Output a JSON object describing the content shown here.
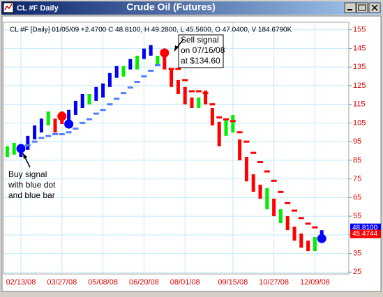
{
  "window": {
    "title": "CL #F Daily"
  },
  "chart_data": {
    "type": "range_bar",
    "title": "Crude Oil (Futures)",
    "subtitle": "CL #F [Daily] 01/05/09 +2.4700 C 48.8100, H 49.2800, L 45.5600, O 47.0400, V 184.6790K",
    "categories": [
      null,
      null,
      "02/13/08",
      null,
      null,
      null,
      null,
      null,
      "03/27/08",
      null,
      null,
      null,
      null,
      null,
      "05/08/08",
      null,
      null,
      null,
      null,
      null,
      "06/20/08",
      null,
      null,
      null,
      null,
      null,
      "08/01/08",
      null,
      null,
      null,
      null,
      null,
      null,
      "09/15/08",
      null,
      null,
      null,
      null,
      null,
      "10/27/08",
      null,
      null,
      null,
      null,
      null,
      "12/09/08",
      null
    ],
    "ylim": [
      24,
      159
    ],
    "yticks": [
      25,
      35,
      45,
      55,
      65,
      75,
      85,
      95,
      105,
      115,
      125,
      135,
      145,
      155
    ],
    "grid": true,
    "series": [
      {
        "type": "range",
        "high": [
          92.5,
          94.3,
          93.6,
          98.1,
          103.7,
          107.4,
          111.2,
          107.4,
          111.2,
          112,
          116.8,
          120.5,
          120.5,
          124.3,
          126.2,
          131.8,
          135.5,
          135.5,
          139.3,
          141.1,
          144.9,
          146.8,
          141.1,
          141.1,
          133.7,
          128,
          124.3,
          118.7,
          118.7,
          122.4,
          113,
          105.6,
          107.4,
          109.3,
          96.2,
          86.8,
          77.5,
          71.9,
          70,
          64.4,
          58.7,
          55,
          49.4,
          45.7,
          41.9,
          43.8,
          47.5
        ],
        "low": [
          86.8,
          88,
          86.8,
          90.6,
          96.2,
          99.9,
          103.7,
          99.9,
          104.4,
          103,
          109.3,
          113,
          115,
          116.8,
          118.7,
          124.3,
          129.2,
          129.9,
          133.7,
          133.7,
          139.3,
          141.1,
          135.5,
          133.7,
          124.3,
          120.5,
          115,
          113,
          113,
          115,
          103.7,
          92.5,
          98.1,
          99.9,
          85,
          73.7,
          68.1,
          64.4,
          58.7,
          55,
          51.3,
          47.5,
          41.9,
          38.1,
          36.3,
          36.3,
          41.9
        ],
        "colors": [
          "#00ee00",
          "#00ee00",
          "#0000ee",
          "#0000ee",
          "#0000ee",
          "#0000ee",
          "#00ee00",
          "#ff0000",
          "#ff0000",
          "#0000ee",
          "#0000ee",
          "#0000ee",
          "#00ee00",
          "#0000ee",
          "#0000ee",
          "#0000ee",
          "#0000ee",
          "#00ee00",
          "#0000ee",
          "#00ee00",
          "#0000ee",
          "#0000ee",
          "#00ee00",
          "#ff0000",
          "#ff0000",
          "#ff0000",
          "#ff0000",
          "#ff0000",
          "#00ee00",
          "#ff0000",
          "#ff0000",
          "#ff0000",
          "#00ee00",
          "#00ee00",
          "#ff0000",
          "#ff0000",
          "#ff0000",
          "#ff0000",
          "#00ee00",
          "#ff0000",
          "#00ee00",
          "#ff0000",
          "#ff0000",
          "#ff0000",
          "#ff0000",
          "#00ee00",
          "#0000ee"
        ]
      },
      {
        "type": "stop",
        "color": "#4f7fff",
        "values": [
          null,
          null,
          null,
          93,
          95,
          97,
          98,
          99,
          99,
          100,
          102,
          105,
          107,
          110,
          112,
          115,
          118,
          121,
          124,
          127,
          130,
          133,
          136,
          null,
          null,
          null,
          null,
          null,
          null,
          null,
          null,
          null,
          null,
          null,
          null,
          null,
          null,
          null,
          null,
          null,
          null,
          null,
          null,
          null,
          null,
          null,
          null
        ]
      },
      {
        "type": "stop",
        "color": "#ff0000",
        "values": [
          null,
          null,
          null,
          null,
          null,
          null,
          null,
          null,
          null,
          null,
          null,
          null,
          null,
          null,
          null,
          null,
          null,
          null,
          null,
          null,
          null,
          null,
          null,
          null,
          134,
          134,
          128,
          122,
          122,
          121,
          115,
          108,
          107,
          106,
          100,
          95,
          89,
          84,
          79,
          74,
          68,
          62,
          58,
          54,
          51,
          49,
          null
        ]
      },
      {
        "type": "signal",
        "values": [
          null,
          null,
          91.3,
          null,
          null,
          null,
          null,
          null,
          108.6,
          104.4,
          null,
          null,
          null,
          null,
          null,
          null,
          null,
          null,
          null,
          null,
          null,
          null,
          null,
          142.6,
          null,
          null,
          null,
          null,
          null,
          null,
          null,
          null,
          null,
          null,
          null,
          null,
          null,
          null,
          null,
          null,
          null,
          null,
          null,
          null,
          null,
          null,
          43
        ],
        "colors": [
          null,
          null,
          "#0000ff",
          null,
          null,
          null,
          null,
          null,
          "#ff0000",
          "#0000ff",
          null,
          null,
          null,
          null,
          null,
          null,
          null,
          null,
          null,
          null,
          null,
          null,
          null,
          "#ff0000",
          null,
          null,
          null,
          null,
          null,
          null,
          null,
          null,
          null,
          null,
          null,
          null,
          null,
          null,
          null,
          null,
          null,
          null,
          null,
          null,
          null,
          null,
          "#0000ff"
        ]
      }
    ],
    "price_tags": [
      {
        "value": 48.81,
        "label": "48.8100",
        "color": "#0000ff"
      },
      {
        "value": 45.4744,
        "label": "45.4744",
        "color": "#ff0000"
      }
    ],
    "annotations": [
      {
        "lines": [
          "Sell signal",
          "on 07/16/08",
          "at $134.60"
        ]
      },
      {
        "lines": [
          "Buy signal",
          "with blue dot",
          "and blue bar"
        ]
      }
    ]
  }
}
